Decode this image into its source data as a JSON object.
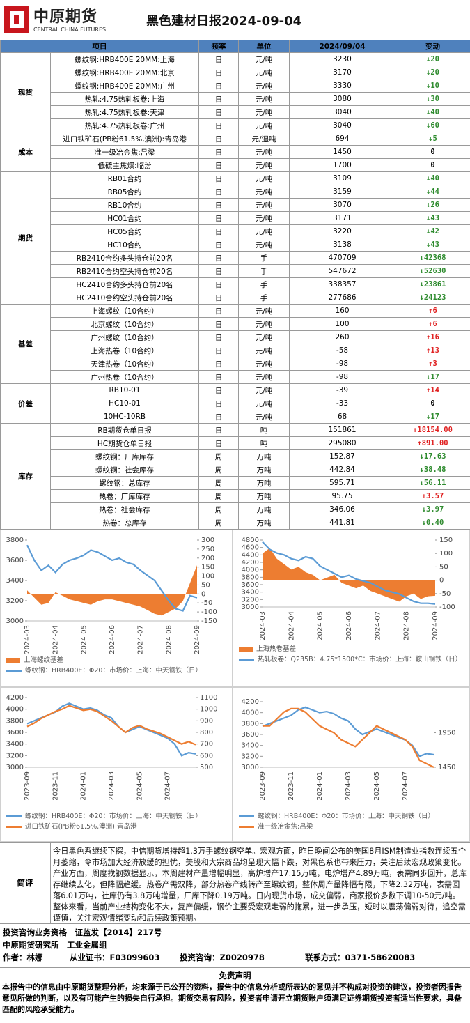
{
  "header": {
    "logo": "中原期货",
    "logo_en": "CENTRAL CHINA FUTURES",
    "title": "黑色建材日报2024-09-04"
  },
  "table": {
    "columns": [
      "项目",
      "频率",
      "单位",
      "2024/09/04",
      "变动"
    ],
    "groups": [
      {
        "name": "现货",
        "rows": [
          {
            "item": "螺纹钢:HRB400E 20MM:上海",
            "freq": "日",
            "unit": "元/吨",
            "value": "3230",
            "change": "20",
            "trend": "down"
          },
          {
            "item": "螺纹钢:HRB400E 20MM:北京",
            "freq": "日",
            "unit": "元/吨",
            "value": "3170",
            "change": "20",
            "trend": "down"
          },
          {
            "item": "螺纹钢:HRB400E 20MM:广州",
            "freq": "日",
            "unit": "元/吨",
            "value": "3330",
            "change": "10",
            "trend": "down"
          },
          {
            "item": "热轧:4.75热轧板卷:上海",
            "freq": "日",
            "unit": "元/吨",
            "value": "3080",
            "change": "30",
            "trend": "down"
          },
          {
            "item": "热轧:4.75热轧板卷:天津",
            "freq": "日",
            "unit": "元/吨",
            "value": "3040",
            "change": "40",
            "trend": "down"
          },
          {
            "item": "热轧:4.75热轧板卷:广州",
            "freq": "日",
            "unit": "元/吨",
            "value": "3040",
            "change": "60",
            "trend": "down"
          }
        ]
      },
      {
        "name": "成本",
        "rows": [
          {
            "item": "进口铁矿石(PB粉61.5%,澳洲):青岛港",
            "freq": "日",
            "unit": "元/湿吨",
            "value": "694",
            "change": "5",
            "trend": "down"
          },
          {
            "item": "准一级冶金焦:吕梁",
            "freq": "日",
            "unit": "元/吨",
            "value": "1450",
            "change": "0",
            "trend": "none"
          },
          {
            "item": "低硫主焦煤:临汾",
            "freq": "日",
            "unit": "元/吨",
            "value": "1700",
            "change": "0",
            "trend": "none"
          }
        ]
      },
      {
        "name": "期货",
        "rows": [
          {
            "item": "RB01合约",
            "freq": "日",
            "unit": "元/吨",
            "value": "3109",
            "change": "40",
            "trend": "down"
          },
          {
            "item": "RB05合约",
            "freq": "日",
            "unit": "元/吨",
            "value": "3159",
            "change": "44",
            "trend": "down"
          },
          {
            "item": "RB10合约",
            "freq": "日",
            "unit": "元/吨",
            "value": "3070",
            "change": "26",
            "trend": "down"
          },
          {
            "item": "HC01合约",
            "freq": "日",
            "unit": "元/吨",
            "value": "3171",
            "change": "43",
            "trend": "down"
          },
          {
            "item": "HC05合约",
            "freq": "日",
            "unit": "元/吨",
            "value": "3220",
            "change": "42",
            "trend": "down"
          },
          {
            "item": "HC10合约",
            "freq": "日",
            "unit": "元/吨",
            "value": "3138",
            "change": "43",
            "trend": "down"
          },
          {
            "item": "RB2410合约多头持仓前20名",
            "freq": "日",
            "unit": "手",
            "value": "470709",
            "change": "42368",
            "trend": "down"
          },
          {
            "item": "RB2410合约空头持仓前20名",
            "freq": "日",
            "unit": "手",
            "value": "547672",
            "change": "52630",
            "trend": "down"
          },
          {
            "item": "HC2410合约多头持仓前20名",
            "freq": "日",
            "unit": "手",
            "value": "338357",
            "change": "23861",
            "trend": "down"
          },
          {
            "item": "HC2410合约空头持仓前20名",
            "freq": "日",
            "unit": "手",
            "value": "277686",
            "change": "24123",
            "trend": "down"
          }
        ]
      },
      {
        "name": "基差",
        "rows": [
          {
            "item": "上海螺纹（10合约）",
            "freq": "日",
            "unit": "元/吨",
            "value": "160",
            "change": "6",
            "trend": "up"
          },
          {
            "item": "北京螺纹（10合约）",
            "freq": "日",
            "unit": "元/吨",
            "value": "100",
            "change": "6",
            "trend": "up"
          },
          {
            "item": "广州螺纹（10合约）",
            "freq": "日",
            "unit": "元/吨",
            "value": "260",
            "change": "16",
            "trend": "up"
          },
          {
            "item": "上海热卷（10合约）",
            "freq": "日",
            "unit": "元/吨",
            "value": "-58",
            "change": "13",
            "trend": "up"
          },
          {
            "item": "天津热卷（10合约）",
            "freq": "日",
            "unit": "元/吨",
            "value": "-98",
            "change": "3",
            "trend": "up"
          },
          {
            "item": "广州热卷（10合约）",
            "freq": "日",
            "unit": "元/吨",
            "value": "-98",
            "change": "17",
            "trend": "down"
          }
        ]
      },
      {
        "name": "价差",
        "rows": [
          {
            "item": "RB10-01",
            "freq": "日",
            "unit": "元/吨",
            "value": "-39",
            "change": "14",
            "trend": "up"
          },
          {
            "item": "HC10-01",
            "freq": "日",
            "unit": "元/吨",
            "value": "-33",
            "change": "0",
            "trend": "none"
          },
          {
            "item": "10HC-10RB",
            "freq": "日",
            "unit": "元/吨",
            "value": "68",
            "change": "17",
            "trend": "down"
          }
        ]
      },
      {
        "name": "库存",
        "rows": [
          {
            "item": "RB期货仓单日报",
            "freq": "日",
            "unit": "吨",
            "value": "151861",
            "change": "18154.00",
            "trend": "up"
          },
          {
            "item": "HC期货仓单日报",
            "freq": "日",
            "unit": "吨",
            "value": "295080",
            "change": "891.00",
            "trend": "up"
          },
          {
            "item": "螺纹钢：厂库库存",
            "freq": "周",
            "unit": "万吨",
            "value": "152.87",
            "change": "17.63",
            "trend": "down"
          },
          {
            "item": "螺纹钢：社会库存",
            "freq": "周",
            "unit": "万吨",
            "value": "442.84",
            "change": "38.48",
            "trend": "down"
          },
          {
            "item": "螺纹钢：总库存",
            "freq": "周",
            "unit": "万吨",
            "value": "595.71",
            "change": "56.11",
            "trend": "down"
          },
          {
            "item": "热卷：厂库库存",
            "freq": "周",
            "unit": "万吨",
            "value": "95.75",
            "change": "3.57",
            "trend": "up"
          },
          {
            "item": "热卷：社会库存",
            "freq": "周",
            "unit": "万吨",
            "value": "346.06",
            "change": "3.97",
            "trend": "down"
          },
          {
            "item": "热卷：总库存",
            "freq": "周",
            "unit": "万吨",
            "value": "441.81",
            "change": "0.40",
            "trend": "down"
          }
        ]
      }
    ]
  },
  "charts": [
    {
      "type": "line",
      "categories": [
        "2024-03",
        null,
        null,
        null,
        "2024-04",
        null,
        null,
        null,
        "2024-05",
        null,
        null,
        null,
        "2024-06",
        null,
        null,
        null,
        "2024-07",
        null,
        null,
        null,
        "2024-08",
        null,
        null,
        null,
        "2024-09"
      ],
      "ylim": [
        3000,
        3800
      ],
      "yticks": [
        3000,
        3200,
        3400,
        3600,
        3800
      ],
      "y2lim": [
        -150,
        300
      ],
      "y2ticks": [
        -150,
        -100,
        -50,
        0,
        50,
        100,
        150,
        200,
        250,
        300
      ],
      "series": [
        {
          "name": "上海螺纹基差",
          "color": "#ed7d31",
          "style": "area",
          "axis": "y2",
          "values": [
            20,
            -20,
            -60,
            -50,
            10,
            -10,
            -30,
            -40,
            -50,
            -60,
            -40,
            -30,
            -30,
            -40,
            -50,
            -60,
            -70,
            -90,
            -110,
            -120,
            -100,
            -80,
            -40,
            60,
            160
          ]
        },
        {
          "name": "螺纹钢：HRB400E：Φ20：市场价：上海：中天钢铁（日）",
          "color": "#5b9bd5",
          "style": "line",
          "axis": "y",
          "values": [
            3750,
            3600,
            3500,
            3550,
            3480,
            3560,
            3600,
            3620,
            3650,
            3700,
            3680,
            3640,
            3600,
            3620,
            3580,
            3560,
            3500,
            3450,
            3400,
            3300,
            3200,
            3120,
            3100,
            3250,
            3230
          ]
        }
      ]
    },
    {
      "type": "line",
      "categories": [
        "2024-03",
        null,
        null,
        null,
        "2024-04",
        null,
        null,
        null,
        "2024-05",
        null,
        null,
        null,
        "2024-06",
        null,
        null,
        null,
        "2024-07",
        null,
        null,
        null,
        "2024-08",
        null,
        null,
        null,
        "2024-09"
      ],
      "ylim": [
        3000,
        4800
      ],
      "yticks": [
        3000,
        3200,
        3400,
        3600,
        3800,
        4000,
        4200,
        4400,
        4600,
        4800
      ],
      "y2lim": [
        -100,
        150
      ],
      "y2ticks": [
        -100,
        -50,
        0,
        50,
        100,
        150
      ],
      "series": [
        {
          "name": "上海热卷基差",
          "color": "#ed7d31",
          "style": "area",
          "axis": "y2",
          "values": [
            100,
            120,
            80,
            60,
            40,
            50,
            30,
            20,
            0,
            10,
            20,
            -10,
            -20,
            -30,
            -20,
            -40,
            -50,
            -60,
            -70,
            -80,
            -60,
            -50,
            -70,
            -60,
            -58
          ]
        },
        {
          "name": "热轧板卷：Q235B：4.75*1500*C：市场价：上海：鞍山钢铁（日）",
          "color": "#5b9bd5",
          "style": "line",
          "axis": "y",
          "values": [
            4750,
            4550,
            4450,
            4400,
            4300,
            4250,
            4350,
            4300,
            4100,
            4000,
            3900,
            3800,
            3850,
            3750,
            3700,
            3650,
            3550,
            3450,
            3400,
            3350,
            3250,
            3150,
            3100,
            3100,
            3080
          ]
        }
      ]
    },
    {
      "type": "line",
      "categories": [
        "2023-09",
        null,
        null,
        null,
        "2023-11",
        null,
        null,
        null,
        "2024-01",
        null,
        null,
        null,
        "2024-03",
        null,
        null,
        null,
        "2024-05",
        null,
        null,
        null,
        "2024-07",
        null,
        null,
        null,
        null
      ],
      "ylim": [
        3000,
        4200
      ],
      "yticks": [
        3000,
        3200,
        3400,
        3600,
        3800,
        4000,
        4200
      ],
      "y2lim": [
        500,
        1100
      ],
      "y2ticks": [
        500,
        600,
        700,
        800,
        900,
        1000,
        1100
      ],
      "series": [
        {
          "name": "螺纹钢：HRB400E：Φ20：市场价：上海：中天钢铁（日）",
          "color": "#5b9bd5",
          "style": "line",
          "axis": "y",
          "values": [
            3750,
            3800,
            3850,
            3900,
            3950,
            4050,
            4100,
            4050,
            4000,
            4020,
            3980,
            3900,
            3850,
            3700,
            3600,
            3650,
            3700,
            3650,
            3600,
            3550,
            3500,
            3400,
            3200,
            3250,
            3230
          ]
        },
        {
          "name": "进口铁矿石(PB粉61.5%,澳洲):青岛港",
          "color": "#ed7d31",
          "style": "line",
          "axis": "y2",
          "values": [
            850,
            880,
            920,
            950,
            980,
            1000,
            1030,
            1010,
            990,
            1000,
            980,
            940,
            900,
            850,
            800,
            840,
            860,
            830,
            810,
            790,
            760,
            730,
            700,
            720,
            694
          ]
        }
      ]
    },
    {
      "type": "line",
      "categories": [
        "2023-09",
        null,
        null,
        null,
        "2023-11",
        null,
        null,
        null,
        "2024-01",
        null,
        null,
        null,
        "2024-03",
        null,
        null,
        null,
        "2024-05",
        null,
        null,
        null,
        "2024-07",
        null,
        null,
        null,
        null
      ],
      "ylim": [
        3000,
        4200
      ],
      "yticks": [
        3000,
        3200,
        3400,
        3600,
        3800,
        4000,
        4200
      ],
      "y2lim": [
        1450,
        2400
      ],
      "y2ticks": [
        1450,
        1950
      ],
      "series": [
        {
          "name": "螺纹钢：HRB400E：Φ20：市场价：上海：中天钢铁（日）",
          "color": "#5b9bd5",
          "style": "line",
          "axis": "y",
          "values": [
            3750,
            3800,
            3850,
            3900,
            3950,
            4050,
            4100,
            4050,
            4000,
            4020,
            3980,
            3900,
            3850,
            3700,
            3600,
            3650,
            3700,
            3650,
            3600,
            3550,
            3500,
            3400,
            3200,
            3250,
            3230
          ]
        },
        {
          "name": "准一级冶金焦:吕梁",
          "color": "#ed7d31",
          "style": "line",
          "axis": "y2",
          "values": [
            2050,
            2050,
            2150,
            2250,
            2300,
            2300,
            2250,
            2150,
            2050,
            2000,
            1950,
            1850,
            1800,
            1750,
            1850,
            1950,
            2050,
            2000,
            1950,
            1900,
            1850,
            1750,
            1550,
            1500,
            1450
          ]
        }
      ]
    }
  ],
  "comment": {
    "label": "简评",
    "text": "今日黑色系继续下探，中信期货增持超1.3万手螺纹钢空单。宏观方面，昨日晚间公布的美国8月ISM制造业指数连续五个月萎缩，令市场加大经济放缓的担忧，美股和大宗商品均呈现大幅下跌，对黑色系也带来压力，关注后续宏观政策变化。产业方面，周度找钢数据显示，本周建材产量增幅明显，高炉增产17.15万吨，电炉增产4.89万吨，表需同步回升，总库存继续去化，但降幅趋缓。热卷产需双降，部分热卷产线转产至螺纹钢，整体周产量降幅有限，下降2.32万吨，表需回落6.01万吨，社库仍有3.8万吨增量，厂库下降0.19万吨。日内现货市场，成交偏弱，商家报价多数下调10-50元/吨。整体来看，当前产业结构变化不大，复产偏缓，钢价主要受宏观走弱的拖累，进一步承压，短时以震荡偏弱对待，追空需谨慎，关注宏观情绪变动和后续政策预期。"
  },
  "footer": {
    "qualification": "投资咨询业务资格　证监发【2014】217号",
    "institute": "中原期货研究所　工业金属组",
    "author": "作者：林娜",
    "certificate": "从业证书：F03099603",
    "consult": "投资咨询：Z0020978",
    "contact": "联系方式：0371-58620083"
  },
  "disclaimer": {
    "title": "免责声明",
    "text": "本报告中的信息由中原期货整理分析，均来源于已公开的资料，报告中的信息分析或所表达的意见并不构成对投资的建议，投资者因报告意见所做的判断，以及有可能产生的损失自行承担。期货交易有风险，投资者申请开立期货账户须满足证券期货投资者适当性要求，具备匹配的风险承受能力。"
  }
}
